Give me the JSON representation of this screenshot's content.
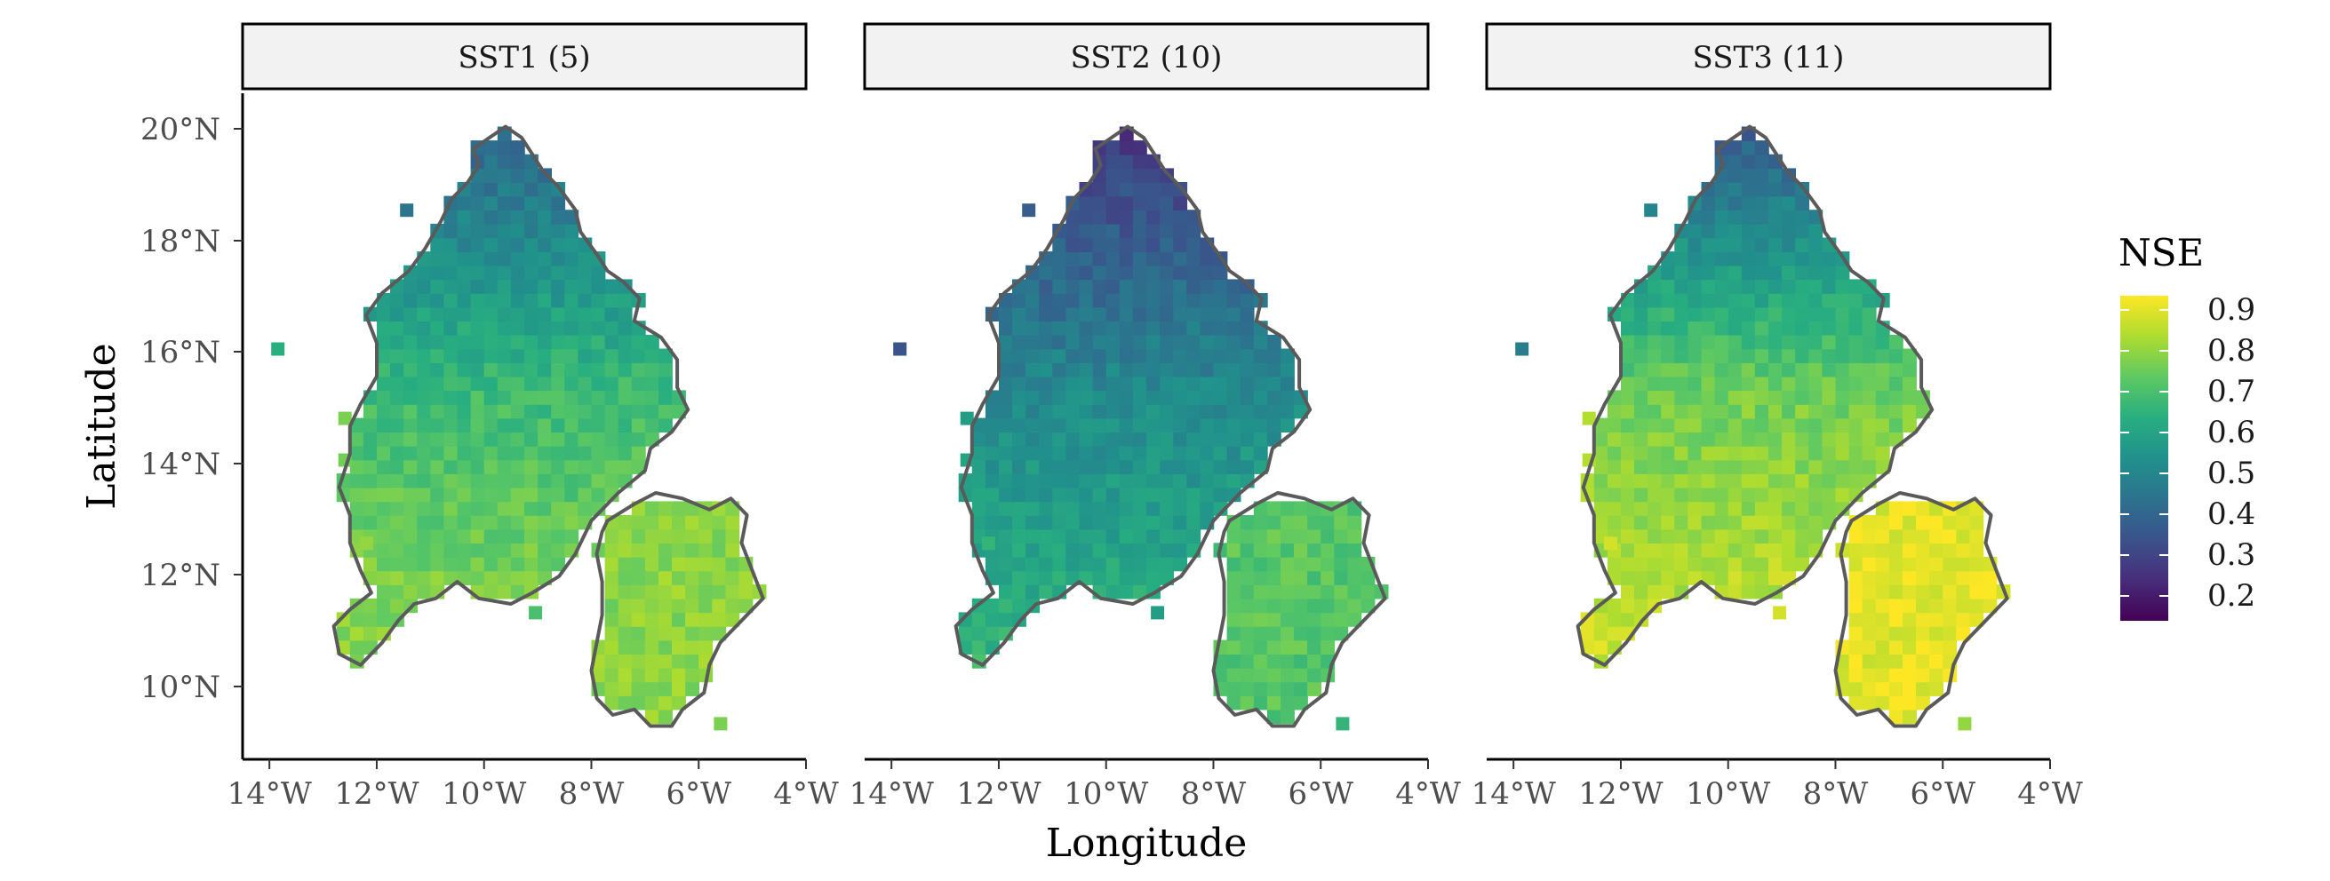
{
  "chart_data": {
    "type": "heatmap",
    "xlabel": "Longitude",
    "ylabel": "Latitude",
    "x_ticks": [
      "14°W",
      "12°W",
      "10°W",
      "8°W",
      "6°W",
      "4°W"
    ],
    "y_ticks": [
      "10°N",
      "12°N",
      "14°N",
      "16°N",
      "18°N",
      "20°N"
    ],
    "xlim": [
      -14.5,
      -4.0
    ],
    "ylim": [
      8.7,
      20.7
    ],
    "legend": {
      "title": "NSE",
      "placement": "right",
      "ticks": [
        "0.9",
        "0.8",
        "0.7",
        "0.6",
        "0.5",
        "0.4",
        "0.3",
        "0.2"
      ],
      "range": [
        0.15,
        0.93
      ],
      "palette": "viridis"
    },
    "panels": [
      {
        "label": "SST1 (5)",
        "nse_north": 0.4,
        "nse_mid": 0.68,
        "nse_south": 0.8,
        "nse_east_basin": 0.79,
        "isolated_cells": [
          {
            "lon": -13.85,
            "lat": 16.1,
            "nse": 0.64
          },
          {
            "lon": -11.45,
            "lat": 18.6,
            "nse": 0.45
          },
          {
            "lon": -12.6,
            "lat": 14.85,
            "nse": 0.77
          },
          {
            "lon": -12.6,
            "lat": 14.1,
            "nse": 0.76
          },
          {
            "lon": -12.2,
            "lat": 12.6,
            "nse": 0.8
          },
          {
            "lon": -9.05,
            "lat": 11.35,
            "nse": 0.7
          },
          {
            "lon": -5.6,
            "lat": 9.35,
            "nse": 0.77
          }
        ]
      },
      {
        "label": "SST2 (10)",
        "nse_north": 0.28,
        "nse_mid": 0.52,
        "nse_south": 0.66,
        "nse_east_basin": 0.72,
        "isolated_cells": [
          {
            "lon": -13.85,
            "lat": 16.1,
            "nse": 0.35
          },
          {
            "lon": -11.45,
            "lat": 18.6,
            "nse": 0.38
          },
          {
            "lon": -12.6,
            "lat": 14.85,
            "nse": 0.58
          },
          {
            "lon": -12.6,
            "lat": 14.1,
            "nse": 0.6
          },
          {
            "lon": -12.2,
            "lat": 12.6,
            "nse": 0.66
          },
          {
            "lon": -9.05,
            "lat": 11.35,
            "nse": 0.58
          },
          {
            "lon": -5.6,
            "lat": 9.35,
            "nse": 0.66
          }
        ]
      },
      {
        "label": "SST3 (11)",
        "nse_north": 0.38,
        "nse_mid": 0.76,
        "nse_south": 0.87,
        "nse_east_basin": 0.9,
        "isolated_cells": [
          {
            "lon": -13.85,
            "lat": 16.1,
            "nse": 0.48
          },
          {
            "lon": -11.45,
            "lat": 18.6,
            "nse": 0.5
          },
          {
            "lon": -12.6,
            "lat": 14.85,
            "nse": 0.84
          },
          {
            "lon": -12.6,
            "lat": 14.1,
            "nse": 0.84
          },
          {
            "lon": -12.2,
            "lat": 12.6,
            "nse": 0.88
          },
          {
            "lon": -9.05,
            "lat": 11.35,
            "nse": 0.88
          },
          {
            "lon": -5.6,
            "lat": 9.35,
            "nse": 0.8
          }
        ]
      }
    ],
    "boundary_color": "#5a5a5a"
  }
}
